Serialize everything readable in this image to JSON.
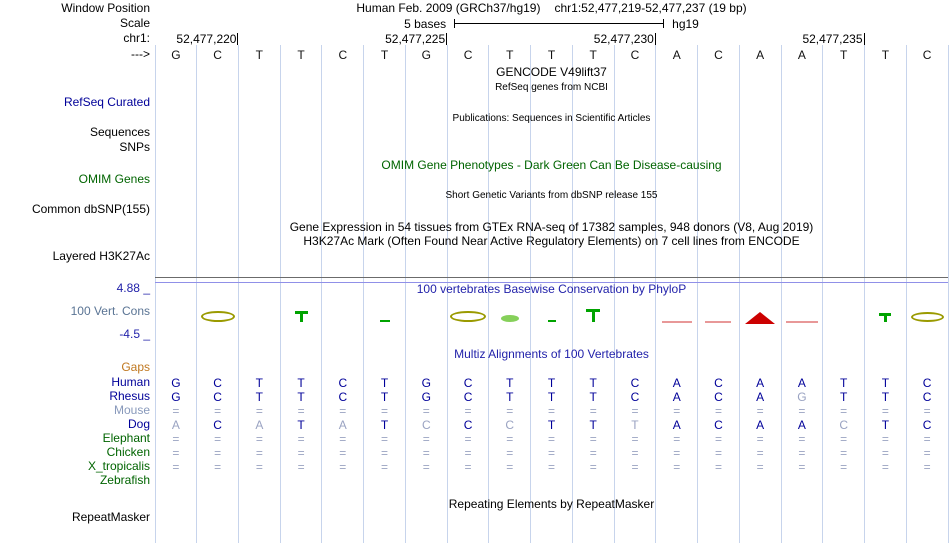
{
  "colors": {
    "grid": "#c7d4ec",
    "track_blue": "#000099",
    "track_green": "#006400",
    "title_blue": "#2222aa",
    "dim": "#9aa3c2",
    "gaps_orange": "#c07820",
    "cons_label": "#5a7494",
    "separator": "#6b6b6b",
    "clip_line": "#9090e8"
  },
  "header": {
    "genome": "Human Feb. 2009 (GRCh37/hg19)",
    "position": "chr1:52,477,219-52,477,237 (19 bp)",
    "scale_text": "5 bases",
    "scale_tag": "hg19"
  },
  "labels": {
    "window_position": "Window Position",
    "scale": "Scale",
    "chrom": "chr1:",
    "strand_arrow": "--->",
    "refseq": "RefSeq Curated",
    "sequences": "Sequences",
    "snps": "SNPs",
    "omim": "OMIM Genes",
    "dbsnp": "Common dbSNP(155)",
    "h3k27ac": "Layered H3K27Ac",
    "cons_max": "4.88 _",
    "cons_track": "100 Vert. Cons",
    "cons_min": "-4.5 _",
    "gaps": "Gaps",
    "repeatmasker": "RepeatMasker"
  },
  "titles": {
    "gencode": "GENCODE V49lift37",
    "refseq_sub": "RefSeq genes from NCBI",
    "publications": "Publications: Sequences in Scientific Articles",
    "omim": "OMIM Gene Phenotypes - Dark Green Can Be Disease-causing",
    "dbsnp": "Short Genetic Variants from dbSNP release 155",
    "gtex": "Gene Expression in 54 tissues from GTEx RNA-seq of 17382 samples, 948 donors (V8, Aug 2019)",
    "h3k27ac": "H3K27Ac Mark (Often Found Near Active Regulatory Elements) on 7 cell lines from ENCODE",
    "phylop": "100 vertebrates Basewise Conservation by PhyloP",
    "multiz": "Multiz Alignments of 100 Vertebrates",
    "repeatmasker": "Repeating Elements by RepeatMasker"
  },
  "ruler": {
    "ticks": [
      {
        "label": "52,477,220",
        "col": 2
      },
      {
        "label": "52,477,225",
        "col": 7
      },
      {
        "label": "52,477,230",
        "col": 12
      },
      {
        "label": "52,477,235",
        "col": 17
      }
    ]
  },
  "sequence": [
    "G",
    "C",
    "T",
    "T",
    "C",
    "T",
    "G",
    "C",
    "T",
    "T",
    "T",
    "C",
    "A",
    "C",
    "A",
    "A",
    "T",
    "T",
    "C"
  ],
  "alignment": {
    "species": [
      {
        "name": "Human",
        "name_color": "#000099",
        "cells": [
          "G",
          "C",
          "T",
          "T",
          "C",
          "T",
          "G",
          "C",
          "T",
          "T",
          "T",
          "C",
          "A",
          "C",
          "A",
          "A",
          "T",
          "T",
          "C"
        ],
        "dim": []
      },
      {
        "name": "Rhesus",
        "name_color": "#000099",
        "cells": [
          "G",
          "C",
          "T",
          "T",
          "C",
          "T",
          "G",
          "C",
          "T",
          "T",
          "T",
          "C",
          "A",
          "C",
          "A",
          "G",
          "T",
          "T",
          "C"
        ],
        "dim": [
          15
        ]
      },
      {
        "name": "Mouse",
        "name_color": "#8899bb",
        "cells": [
          "=",
          "=",
          "=",
          "=",
          "=",
          "=",
          "=",
          "=",
          "=",
          "=",
          "=",
          "=",
          "=",
          "=",
          "=",
          "=",
          "=",
          "=",
          "="
        ],
        "dim": "all"
      },
      {
        "name": "Dog",
        "name_color": "#000099",
        "cells": [
          "A",
          "C",
          "A",
          "T",
          "A",
          "T",
          "C",
          "C",
          "C",
          "T",
          "T",
          "T",
          "A",
          "C",
          "A",
          "A",
          "C",
          "T",
          "C"
        ],
        "dim": [
          0,
          2,
          4,
          6,
          8,
          11,
          16
        ]
      },
      {
        "name": "Elephant",
        "name_color": "#006400",
        "cells": [
          "=",
          "=",
          "=",
          "=",
          "=",
          "=",
          "=",
          "=",
          "=",
          "=",
          "=",
          "=",
          "=",
          "=",
          "=",
          "=",
          "=",
          "=",
          "="
        ],
        "dim": "all"
      },
      {
        "name": "Chicken",
        "name_color": "#006400",
        "cells": [
          "=",
          "=",
          "=",
          "=",
          "=",
          "=",
          "=",
          "=",
          "=",
          "=",
          "=",
          "=",
          "=",
          "=",
          "=",
          "=",
          "=",
          "=",
          "="
        ],
        "dim": "all"
      },
      {
        "name": "X_tropicalis",
        "name_color": "#006400",
        "cells": [
          "=",
          "=",
          "=",
          "=",
          "=",
          "=",
          "=",
          "=",
          "=",
          "=",
          "=",
          "=",
          "=",
          "=",
          "=",
          "=",
          "=",
          "=",
          "="
        ],
        "dim": "all"
      },
      {
        "name": "Zebrafish",
        "name_color": "#006400",
        "cells": [],
        "dim": []
      }
    ]
  },
  "conservation": {
    "marks": [
      {
        "col": 2,
        "base": "C",
        "kind": "ring",
        "color": "#9a9a00",
        "w": 34,
        "h": 11
      },
      {
        "col": 4,
        "base": "T",
        "kind": "tee",
        "color": "#00a300",
        "w": 13,
        "h": 11
      },
      {
        "col": 6,
        "base": "T",
        "kind": "dash",
        "color": "#00a300",
        "w": 10,
        "h": 2
      },
      {
        "col": 8,
        "base": "C",
        "kind": "ring",
        "color": "#9a9a00",
        "w": 36,
        "h": 11
      },
      {
        "col": 9,
        "base": "T",
        "kind": "blob",
        "color": "#86d05a",
        "w": 18,
        "h": 7
      },
      {
        "col": 10,
        "base": "T",
        "kind": "dash",
        "color": "#00a300",
        "w": 8,
        "h": 2
      },
      {
        "col": 11,
        "base": "T",
        "kind": "tee",
        "color": "#00a300",
        "w": 14,
        "h": 13
      },
      {
        "col": 13,
        "base": "A",
        "kind": "dash",
        "color": "#e89898",
        "w": 30,
        "h": 2,
        "neg": true
      },
      {
        "col": 14,
        "base": "C",
        "kind": "dash",
        "color": "#e89898",
        "w": 26,
        "h": 2,
        "neg": true
      },
      {
        "col": 15,
        "base": "A",
        "kind": "tri",
        "color": "#cc0000",
        "w": 30,
        "h": 12
      },
      {
        "col": 16,
        "base": "A",
        "kind": "dash",
        "color": "#e89898",
        "w": 32,
        "h": 2,
        "neg": true
      },
      {
        "col": 18,
        "base": "T",
        "kind": "tee",
        "color": "#00a300",
        "w": 12,
        "h": 9
      },
      {
        "col": 19,
        "base": "C",
        "kind": "ring",
        "color": "#9a9a00",
        "w": 33,
        "h": 10
      }
    ]
  }
}
